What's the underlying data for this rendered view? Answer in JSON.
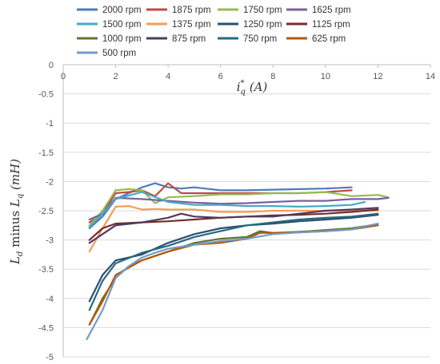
{
  "chart_data": {
    "type": "line",
    "xlabel": "i*q (A)",
    "ylabel": "Ld minus Lq (mH)",
    "xlim": [
      0,
      14
    ],
    "ylim": [
      -5,
      0
    ],
    "xticks": [
      0,
      2,
      4,
      6,
      8,
      10,
      12,
      14
    ],
    "yticks": [
      0,
      -0.5,
      -1,
      -1.5,
      -2,
      -2.5,
      -3,
      -3.5,
      -4,
      -4.5,
      -5
    ],
    "xtick_labels": [
      "0",
      "2",
      "4",
      "6",
      "8",
      "10",
      "12",
      "14"
    ],
    "ytick_labels": [
      "0",
      "-0.5",
      "-1",
      "-1.5",
      "-2",
      "-2.5",
      "-3",
      "-3.5",
      "-4",
      "-4.5",
      "-5"
    ],
    "grid": "horizontal",
    "legend_position": "top",
    "xlabel_parts": {
      "i": "i",
      "star": "*",
      "q": "q",
      "rest": " (A)"
    },
    "ylabel_parts": {
      "L1": "L",
      "d": "d",
      "mid": " minus ",
      "L2": "L",
      "q": "q",
      "rest": " (mH)"
    },
    "series": [
      {
        "name": "2000 rpm",
        "color": "#4a7ebb",
        "x": [
          1,
          1.5,
          2,
          2.5,
          3,
          3.5,
          4,
          4.5,
          5,
          6,
          7,
          8,
          9,
          10,
          11
        ],
        "y": [
          -2.8,
          -2.6,
          -2.3,
          -2.2,
          -2.1,
          -2.03,
          -2.1,
          -2.12,
          -2.1,
          -2.15,
          -2.15,
          -2.14,
          -2.13,
          -2.12,
          -2.1
        ]
      },
      {
        "name": "1875 rpm",
        "color": "#be4b48",
        "x": [
          1,
          1.5,
          2,
          2.5,
          3,
          3.5,
          4,
          4.5,
          5,
          6,
          7,
          8,
          9,
          10,
          11
        ],
        "y": [
          -2.7,
          -2.55,
          -2.2,
          -2.18,
          -2.15,
          -2.25,
          -2.03,
          -2.2,
          -2.2,
          -2.2,
          -2.2,
          -2.2,
          -2.2,
          -2.18,
          -2.15
        ]
      },
      {
        "name": "1750 rpm",
        "color": "#98b954",
        "x": [
          1,
          1.5,
          2,
          2.5,
          3,
          3.5,
          4,
          5,
          6,
          7,
          8,
          9,
          10,
          11,
          12,
          12.4
        ],
        "y": [
          -2.75,
          -2.5,
          -2.15,
          -2.13,
          -2.15,
          -2.37,
          -2.27,
          -2.25,
          -2.22,
          -2.22,
          -2.2,
          -2.2,
          -2.18,
          -2.25,
          -2.23,
          -2.27
        ]
      },
      {
        "name": "1625 rpm",
        "color": "#7d60a0",
        "x": [
          1,
          1.5,
          2,
          3,
          4,
          5,
          6,
          7,
          8,
          9,
          10,
          11,
          12,
          12.4
        ],
        "y": [
          -2.65,
          -2.55,
          -2.28,
          -2.3,
          -2.33,
          -2.36,
          -2.38,
          -2.37,
          -2.35,
          -2.33,
          -2.33,
          -2.3,
          -2.3,
          -2.28
        ]
      },
      {
        "name": "1500 rpm",
        "color": "#46aac4",
        "x": [
          1,
          1.5,
          2,
          3,
          4,
          5,
          6,
          7,
          8,
          9,
          10,
          11,
          11.5
        ],
        "y": [
          -2.78,
          -2.55,
          -2.3,
          -2.18,
          -2.35,
          -2.4,
          -2.4,
          -2.42,
          -2.42,
          -2.43,
          -2.42,
          -2.4,
          -2.35
        ]
      },
      {
        "name": "1375 rpm",
        "color": "#f59d56",
        "x": [
          1,
          1.5,
          2,
          2.5,
          3,
          3.5,
          4,
          5,
          6,
          7,
          8,
          9,
          10,
          11,
          12
        ],
        "y": [
          -3.2,
          -2.8,
          -2.43,
          -2.42,
          -2.48,
          -2.47,
          -2.48,
          -2.48,
          -2.52,
          -2.52,
          -2.5,
          -2.5,
          -2.5,
          -2.5,
          -2.5
        ]
      },
      {
        "name": "1250 rpm",
        "color": "#2c4d75",
        "x": [
          1,
          1.5,
          2,
          3,
          4,
          5,
          6,
          7,
          8,
          9,
          10,
          11,
          12
        ],
        "y": [
          -4.05,
          -3.6,
          -3.35,
          -3.25,
          -3.05,
          -2.9,
          -2.8,
          -2.75,
          -2.72,
          -2.68,
          -2.65,
          -2.62,
          -2.57
        ]
      },
      {
        "name": "1125 rpm",
        "color": "#772c2a",
        "x": [
          1,
          1.5,
          2,
          3,
          4,
          5,
          6,
          7,
          8,
          9,
          10,
          11,
          12
        ],
        "y": [
          -3,
          -2.8,
          -2.72,
          -2.7,
          -2.68,
          -2.65,
          -2.62,
          -2.6,
          -2.58,
          -2.57,
          -2.55,
          -2.52,
          -2.48
        ]
      },
      {
        "name": "1000 rpm",
        "color": "#5f7530",
        "x": [
          1,
          1.5,
          2,
          2.5,
          3,
          4,
          5,
          6,
          7,
          7.5,
          8,
          9,
          10,
          11,
          12
        ],
        "y": [
          -4.45,
          -4,
          -3.65,
          -3.45,
          -3.35,
          -3.2,
          -3.05,
          -2.98,
          -2.95,
          -2.85,
          -2.88,
          -2.86,
          -2.83,
          -2.8,
          -2.73
        ]
      },
      {
        "name": "875 rpm",
        "color": "#4d3b62",
        "x": [
          1,
          1.5,
          2,
          3,
          4,
          4.5,
          5,
          6,
          7,
          8,
          9,
          10,
          11,
          12
        ],
        "y": [
          -3.05,
          -2.9,
          -2.75,
          -2.7,
          -2.62,
          -2.55,
          -2.6,
          -2.62,
          -2.6,
          -2.6,
          -2.55,
          -2.5,
          -2.48,
          -2.45
        ]
      },
      {
        "name": "750 rpm",
        "color": "#276a7c",
        "x": [
          1,
          1.5,
          2,
          3,
          4,
          5,
          6,
          7,
          8,
          9,
          10,
          11,
          12
        ],
        "y": [
          -4.2,
          -3.7,
          -3.4,
          -3.22,
          -3.1,
          -2.95,
          -2.85,
          -2.75,
          -2.7,
          -2.65,
          -2.62,
          -2.6,
          -2.55
        ]
      },
      {
        "name": "625 rpm",
        "color": "#b65708",
        "x": [
          1,
          1.5,
          2,
          3,
          4,
          5,
          6,
          7,
          7.5,
          8,
          9,
          10,
          11,
          12
        ],
        "y": [
          -4.45,
          -4.05,
          -3.6,
          -3.35,
          -3.2,
          -3.08,
          -3.05,
          -2.98,
          -2.88,
          -2.88,
          -2.87,
          -2.85,
          -2.82,
          -2.75
        ]
      },
      {
        "name": "500 rpm",
        "color": "#729aca",
        "x": [
          0.9,
          1.5,
          2,
          2.5,
          3,
          3.5,
          4,
          5,
          6,
          7,
          8,
          9,
          10,
          11,
          12
        ],
        "y": [
          -4.7,
          -4.2,
          -3.65,
          -3.45,
          -3.3,
          -3.22,
          -3.15,
          -3.08,
          -3.02,
          -2.98,
          -2.9,
          -2.87,
          -2.85,
          -2.82,
          -2.72
        ]
      }
    ]
  }
}
